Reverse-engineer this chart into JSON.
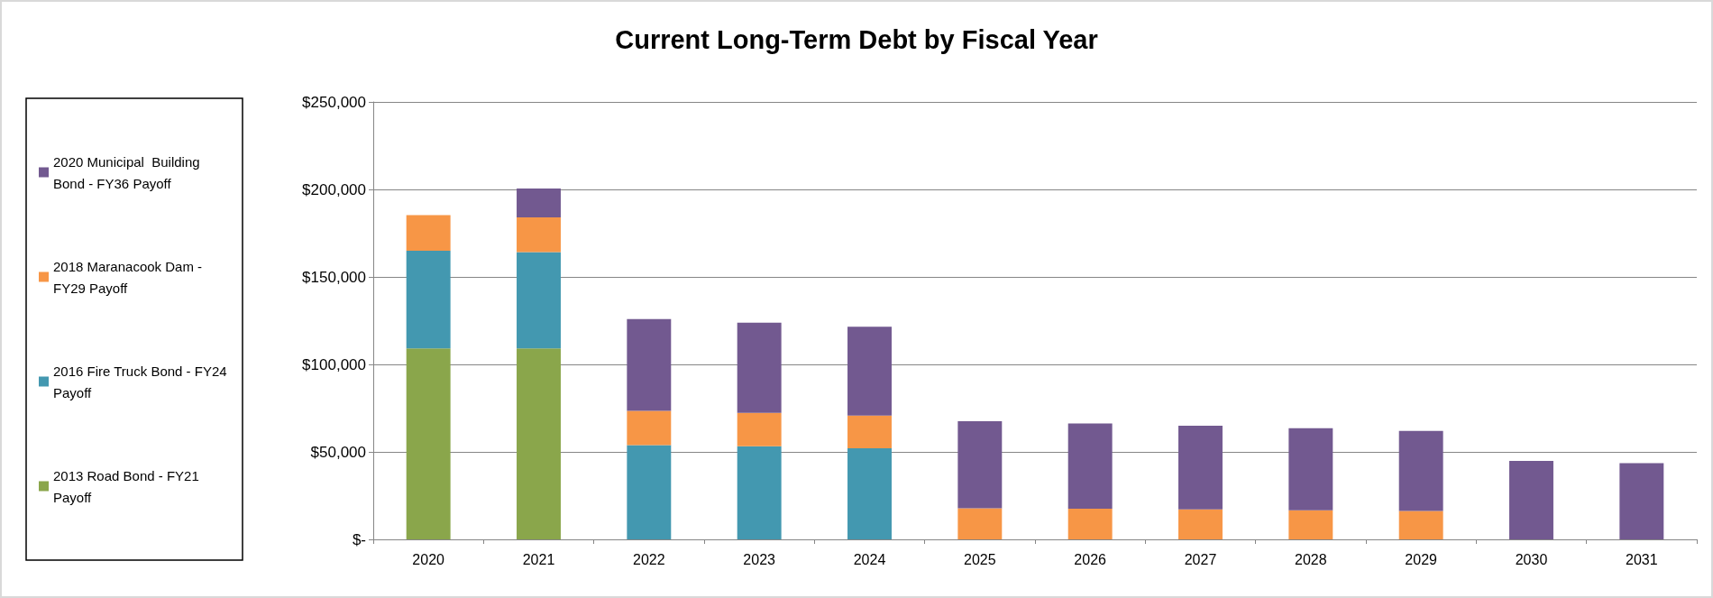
{
  "chart_data": {
    "type": "bar",
    "title": "Current Long-Term Debt by Fiscal Year",
    "stacked": true,
    "categories": [
      "2020",
      "2021",
      "2022",
      "2023",
      "2024",
      "2025",
      "2026",
      "2027",
      "2028",
      "2029",
      "2030",
      "2031"
    ],
    "series": [
      {
        "name": "2013 Road Bond - FY21 Payoff",
        "color": "#8aa64b",
        "values": [
          109200,
          109200,
          null,
          null,
          null,
          null,
          null,
          null,
          null,
          null,
          null,
          null
        ]
      },
      {
        "name": "2016 Fire Truck Bond - FY24 Payoff",
        "color": "#4398b0",
        "values": [
          55700,
          55000,
          53900,
          53200,
          52100,
          null,
          null,
          null,
          null,
          null,
          null,
          null
        ]
      },
      {
        "name": "2018 Maranacook Dam - FY29 Payoff",
        "color": "#f79646",
        "values": [
          20400,
          19800,
          19500,
          19100,
          18700,
          17800,
          17500,
          17200,
          16600,
          16300,
          null,
          null
        ]
      },
      {
        "name": "2020 Municipal  Building Bond - FY36 Payoff",
        "color": "#725990",
        "values": [
          null,
          16500,
          52500,
          51600,
          50700,
          49700,
          48800,
          47800,
          46900,
          45700,
          44800,
          43600
        ]
      }
    ],
    "ylim": [
      0,
      250000
    ],
    "yticks": [
      {
        "value": 0,
        "label": "$-"
      },
      {
        "value": 50000,
        "label": "$50,000"
      },
      {
        "value": 100000,
        "label": "$100,000"
      },
      {
        "value": 150000,
        "label": "$150,000"
      },
      {
        "value": 200000,
        "label": "$200,000"
      },
      {
        "value": 250000,
        "label": "$250,000"
      }
    ],
    "grid": "y",
    "legend": "left"
  }
}
